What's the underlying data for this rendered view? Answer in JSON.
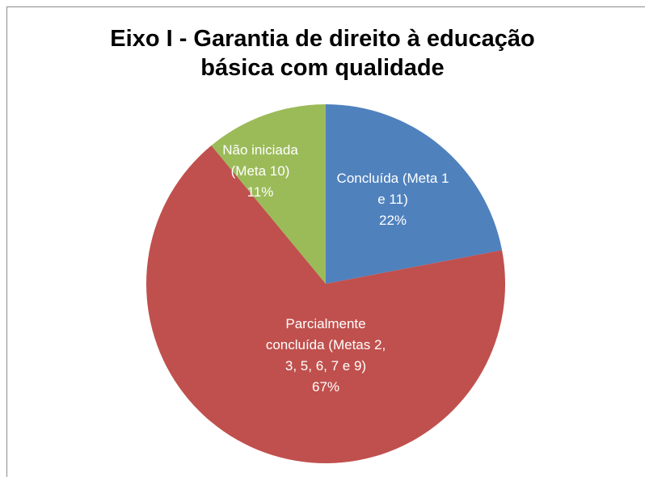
{
  "chart_data": {
    "type": "pie",
    "title": "Eixo I - Garantia de direito à educação básica com qualidade",
    "categories": [
      "Concluída (Meta 1 e 11)",
      "Parcialmente concluída (Metas 2, 3, 5, 6, 7 e 9)",
      "Não iniciada (Meta 10)"
    ],
    "values": [
      22,
      67,
      11
    ],
    "value_labels": [
      "22%",
      "67%",
      "11%"
    ],
    "colors": [
      "#4f81bd",
      "#c0504d",
      "#9bbb59"
    ]
  }
}
